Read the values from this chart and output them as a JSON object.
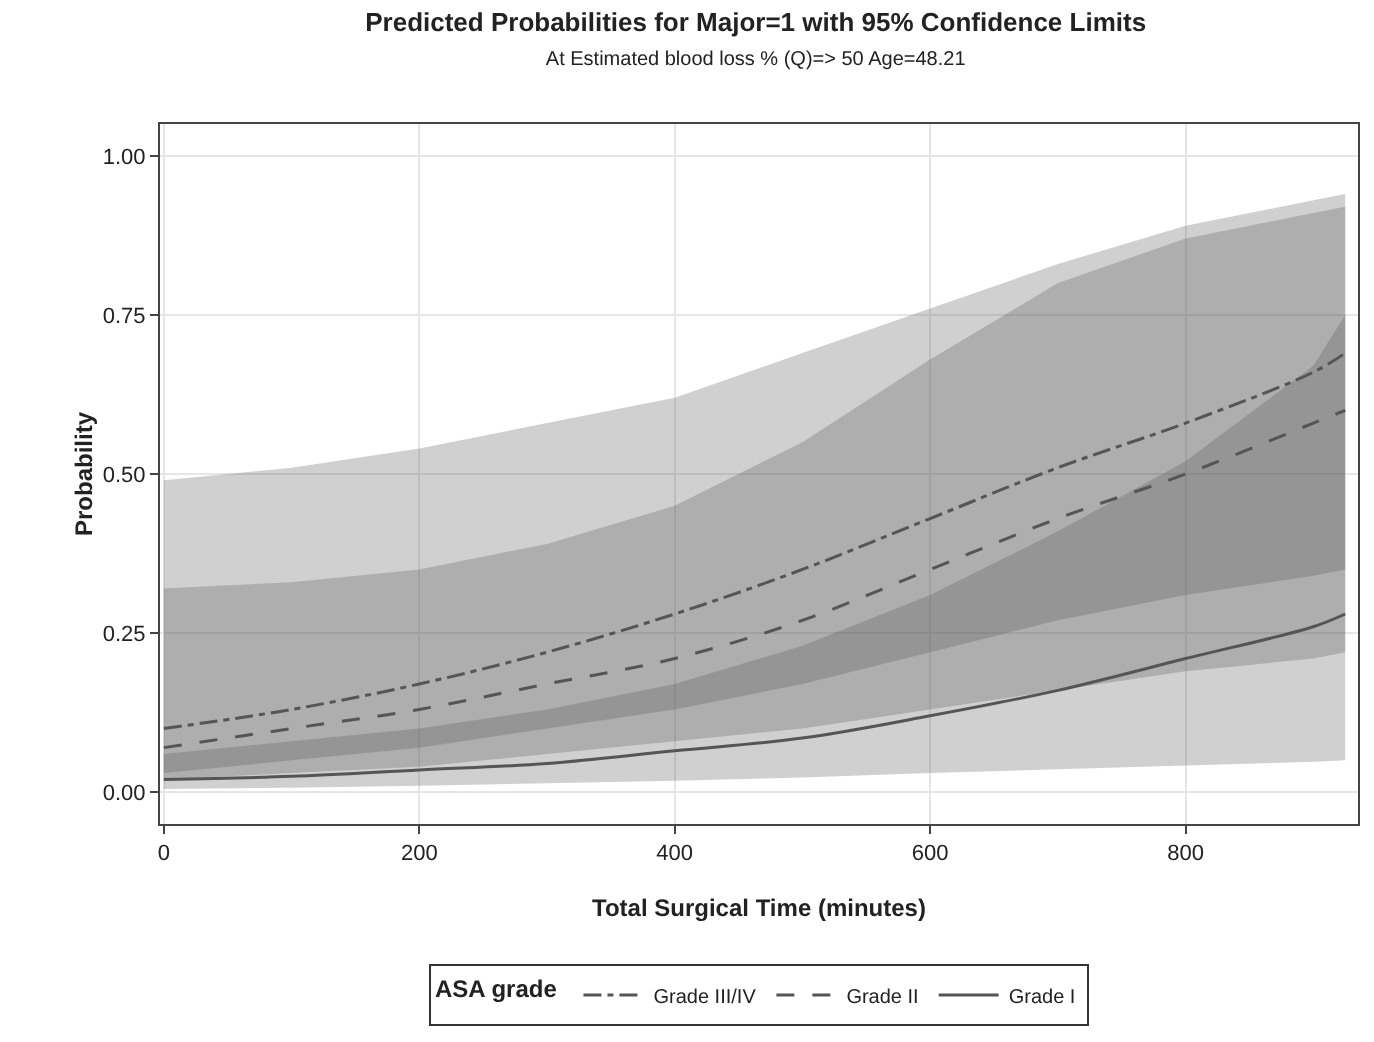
{
  "chart_data": {
    "type": "line",
    "title": "Predicted Probabilities for Major=1 with 95% Confidence Limits",
    "subtitle": "At Estimated blood loss % (Q)=> 50 Age=48.21",
    "xlabel": "Total Surgical Time (minutes)",
    "ylabel": "Probability",
    "legend_title": "ASA grade",
    "legend": "bottom",
    "grid": true,
    "marker": "none",
    "x": [
      0,
      100,
      200,
      300,
      400,
      500,
      600,
      700,
      800,
      900,
      925
    ],
    "xlim": [
      -3,
      935
    ],
    "xticks": [
      0,
      200,
      400,
      600,
      800
    ],
    "ylim": [
      -0.05,
      1.05
    ],
    "yticks": [
      {
        "value": 0,
        "label": "0.00"
      },
      {
        "value": 0.25,
        "label": "0.25"
      },
      {
        "value": 0.5,
        "label": "0.50"
      },
      {
        "value": 0.75,
        "label": "0.75"
      },
      {
        "value": 1,
        "label": "1.00"
      }
    ],
    "series": [
      {
        "name": "Grade I",
        "color": "#555555",
        "line_style": "solid",
        "values": [
          0.02,
          0.025,
          0.035,
          0.045,
          0.065,
          0.085,
          0.12,
          0.16,
          0.21,
          0.26,
          0.28
        ],
        "lower": [
          0.005,
          0.007,
          0.01,
          0.014,
          0.018,
          0.023,
          0.03,
          0.036,
          0.042,
          0.048,
          0.05
        ],
        "upper": [
          0.06,
          0.08,
          0.1,
          0.13,
          0.17,
          0.23,
          0.31,
          0.41,
          0.52,
          0.67,
          0.75
        ]
      },
      {
        "name": "Grade II",
        "color": "#555555",
        "line_style": "dashed",
        "values": [
          0.07,
          0.1,
          0.13,
          0.17,
          0.21,
          0.27,
          0.35,
          0.43,
          0.5,
          0.58,
          0.6
        ],
        "lower": [
          0.02,
          0.03,
          0.04,
          0.06,
          0.08,
          0.1,
          0.13,
          0.16,
          0.19,
          0.21,
          0.22
        ],
        "upper": [
          0.32,
          0.33,
          0.35,
          0.39,
          0.45,
          0.55,
          0.68,
          0.8,
          0.87,
          0.91,
          0.92
        ]
      },
      {
        "name": "Grade III/IV",
        "color": "#555555",
        "line_style": "dashdot",
        "values": [
          0.1,
          0.13,
          0.17,
          0.22,
          0.28,
          0.35,
          0.43,
          0.51,
          0.58,
          0.66,
          0.69
        ],
        "lower": [
          0.03,
          0.05,
          0.07,
          0.1,
          0.13,
          0.17,
          0.22,
          0.27,
          0.31,
          0.34,
          0.35
        ],
        "upper": [
          0.49,
          0.51,
          0.54,
          0.58,
          0.62,
          0.69,
          0.76,
          0.83,
          0.89,
          0.93,
          0.94
        ]
      }
    ]
  }
}
